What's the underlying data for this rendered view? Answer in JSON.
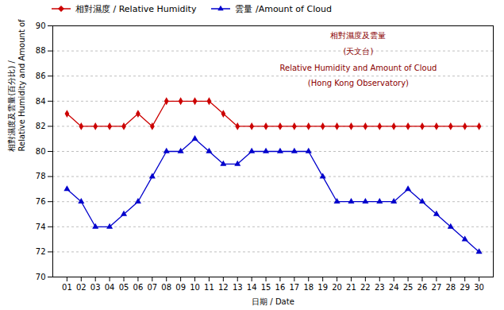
{
  "chart_data": {
    "type": "line",
    "xlabel": "日期 / Date",
    "ylabel": [
      "相對濕度及雲量(百分比) /",
      "Relative Humidity and Amount of Cloud (%)"
    ],
    "x": [
      1,
      2,
      3,
      4,
      5,
      6,
      7,
      8,
      9,
      10,
      11,
      12,
      13,
      14,
      15,
      16,
      17,
      18,
      19,
      20,
      21,
      22,
      23,
      24,
      25,
      26,
      27,
      28,
      29,
      30
    ],
    "series": [
      {
        "name": "相對濕度 / Relative Humidity",
        "color": "#cc0000",
        "marker": "diamond",
        "values": [
          83,
          82,
          82,
          82,
          82,
          83,
          82,
          84,
          84,
          84,
          84,
          83,
          82,
          82,
          82,
          82,
          82,
          82,
          82,
          82,
          82,
          82,
          82,
          82,
          82,
          82,
          82,
          82,
          82,
          82
        ]
      },
      {
        "name": "雲量 /Amount of Cloud",
        "color": "#0000cc",
        "marker": "triangle",
        "values": [
          77,
          76,
          74,
          74,
          75,
          76,
          78,
          80,
          80,
          81,
          80,
          79,
          79,
          80,
          80,
          80,
          80,
          80,
          78,
          76,
          76,
          76,
          76,
          76,
          77,
          76,
          75,
          74,
          73,
          72
        ]
      }
    ],
    "xlim": [
      0,
      31
    ],
    "xticks": [
      {
        "value": 1,
        "label": "01"
      },
      {
        "value": 2,
        "label": "02"
      },
      {
        "value": 3,
        "label": "03"
      },
      {
        "value": 4,
        "label": "04"
      },
      {
        "value": 5,
        "label": "05"
      },
      {
        "value": 6,
        "label": "06"
      },
      {
        "value": 7,
        "label": "07"
      },
      {
        "value": 8,
        "label": "08"
      },
      {
        "value": 9,
        "label": "09"
      },
      {
        "value": 10,
        "label": "10"
      },
      {
        "value": 11,
        "label": "11"
      },
      {
        "value": 12,
        "label": "12"
      },
      {
        "value": 13,
        "label": "13"
      },
      {
        "value": 14,
        "label": "14"
      },
      {
        "value": 15,
        "label": "15"
      },
      {
        "value": 16,
        "label": "16"
      },
      {
        "value": 17,
        "label": "17"
      },
      {
        "value": 18,
        "label": "18"
      },
      {
        "value": 19,
        "label": "19"
      },
      {
        "value": 20,
        "label": "20"
      },
      {
        "value": 21,
        "label": "21"
      },
      {
        "value": 22,
        "label": "22"
      },
      {
        "value": 23,
        "label": "23"
      },
      {
        "value": 24,
        "label": "24"
      },
      {
        "value": 25,
        "label": "25"
      },
      {
        "value": 26,
        "label": "26"
      },
      {
        "value": 27,
        "label": "27"
      },
      {
        "value": 28,
        "label": "28"
      },
      {
        "value": 29,
        "label": "29"
      },
      {
        "value": 30,
        "label": "30"
      }
    ],
    "ylim": [
      70,
      90
    ],
    "yticks": [
      70,
      72,
      74,
      76,
      78,
      80,
      82,
      84,
      86,
      88,
      90
    ],
    "grid": true,
    "legend": "upper left",
    "annotations": [
      {
        "text": "相對濕度及雲量",
        "x": 21.5,
        "y": 89.5,
        "color": "#8b0000"
      },
      {
        "text": "(天文台)",
        "x": 21.5,
        "y": 88.2,
        "color": "#8b0000"
      },
      {
        "text": "Relative Humidity and Amount of Cloud",
        "x": 21.5,
        "y": 86.9,
        "color": "#8b0000"
      },
      {
        "text": "(Hong Kong Observatory)",
        "x": 21.5,
        "y": 85.7,
        "color": "#8b0000"
      }
    ]
  }
}
